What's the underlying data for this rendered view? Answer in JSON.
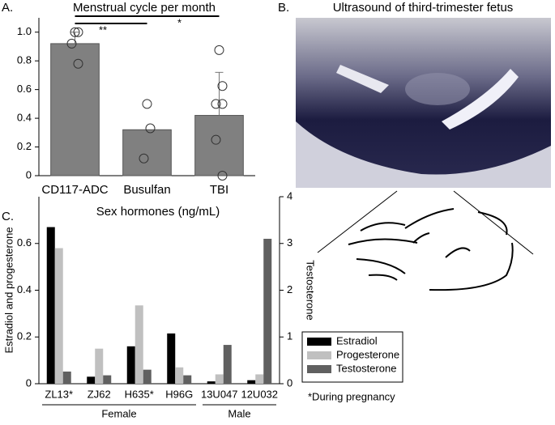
{
  "panels": {
    "a": "A.",
    "b": "B.",
    "c": "C."
  },
  "image": {
    "title": "Ultrasound of third-trimester fetus"
  },
  "chart_data": [
    {
      "type": "bar",
      "title": "Menstrual cycle per month",
      "categories": [
        "CD117-ADC",
        "Busulfan",
        "TBI"
      ],
      "values": [
        0.92,
        0.32,
        0.42
      ],
      "errors": [
        0.08,
        null,
        0.3
      ],
      "points": [
        [
          1.0,
          1.0,
          0.92,
          0.78
        ],
        [
          0.5,
          0.33,
          0.12
        ],
        [
          0.875,
          0.625,
          0.5,
          0.5,
          0.25,
          0
        ]
      ],
      "color": "#808080",
      "annotations": [
        "**",
        "*"
      ],
      "ylim": [
        0,
        1.1
      ],
      "yticks": [
        0,
        0.2,
        0.4,
        0.6,
        0.8,
        {
          "value": 1,
          "label": "1.0"
        }
      ]
    },
    {
      "type": "grouped_bar",
      "title": "Sex hormones (ng/mL)",
      "ylabel": "Estradiol and progesterone",
      "y2label": "Testosterone",
      "categories": [
        "ZL13*",
        "ZJ62",
        "H635*",
        "H96G",
        "13U047",
        "12U032"
      ],
      "groups": [
        {
          "name": "Female",
          "size": 4
        },
        {
          "name": "Male",
          "size": 2
        }
      ],
      "series": [
        {
          "name": "Estradiol",
          "color": "#000000",
          "values": [
            0.67,
            0.03,
            0.16,
            0.215,
            0.01,
            0.015
          ]
        },
        {
          "name": "Progesterone",
          "color": "#c0c0c0",
          "values": [
            0.58,
            0.15,
            0.335,
            0.07,
            0.04,
            0.04
          ]
        },
        {
          "name": "Testosterone",
          "color": "#606060",
          "axis": "y2",
          "values": [
            0.26,
            0.18,
            0.3,
            0.18,
            0.83,
            3.1
          ]
        }
      ],
      "ylim": [
        0,
        0.8
      ],
      "yticks": [
        0,
        0.2,
        0.4,
        0.6
      ],
      "y2lim": [
        0,
        4
      ],
      "y2ticks": [
        0,
        1,
        2,
        3,
        4
      ],
      "legend": "lower right",
      "note": "*During pregnancy"
    }
  ]
}
